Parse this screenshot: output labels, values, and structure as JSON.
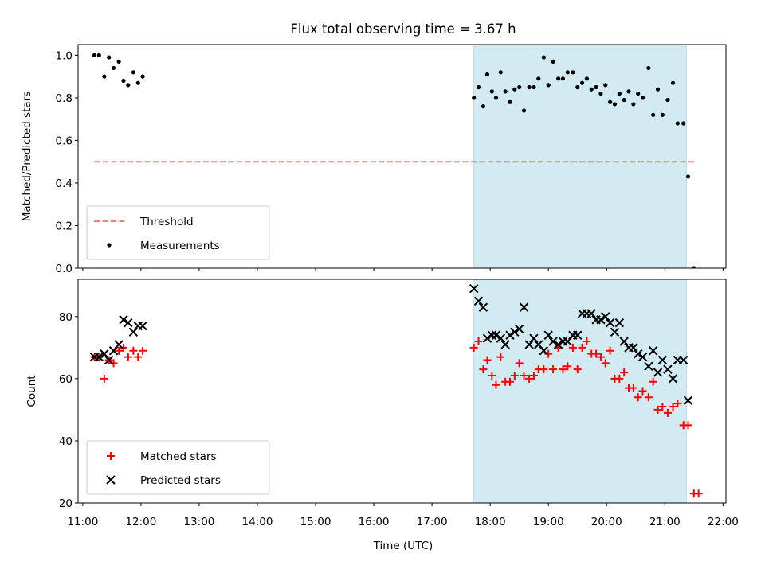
{
  "figure": {
    "title": "Flux total observing time = 3.67 h",
    "xlabel": "Time (UTC)",
    "xtick_labels": [
      "11:00",
      "12:00",
      "13:00",
      "14:00",
      "15:00",
      "16:00",
      "17:00",
      "18:00",
      "19:00",
      "20:00",
      "21:00",
      "22:00"
    ]
  },
  "chart_data": [
    {
      "type": "scatter",
      "ylabel": "Matched/Predicted stars",
      "ylim": [
        0,
        1.05
      ],
      "xlim": [
        10.92,
        22.05
      ],
      "yticks": [
        0.0,
        0.2,
        0.4,
        0.6,
        0.8,
        1.0
      ],
      "ytick_labels": [
        "0.0",
        "0.2",
        "0.4",
        "0.6",
        "0.8",
        "1.0"
      ],
      "shaded_interval": {
        "x": [
          17.72,
          21.37
        ],
        "color": "#add8e6"
      },
      "threshold": {
        "name": "Threshold",
        "y": 0.5,
        "x": [
          11.2,
          21.55
        ],
        "color": "#f08080",
        "style": "dashed"
      },
      "legend": {
        "position": "lower-left",
        "entries": [
          "Threshold",
          "Measurements"
        ]
      },
      "series": [
        {
          "name": "Measurements",
          "marker": "dot",
          "color": "#000000",
          "points": [
            [
              11.2,
              1.0
            ],
            [
              11.28,
              1.0
            ],
            [
              11.37,
              0.9
            ],
            [
              11.45,
              0.99
            ],
            [
              11.53,
              0.94
            ],
            [
              11.62,
              0.97
            ],
            [
              11.7,
              0.88
            ],
            [
              11.78,
              0.86
            ],
            [
              11.87,
              0.92
            ],
            [
              11.95,
              0.87
            ],
            [
              12.03,
              0.9
            ],
            [
              17.72,
              0.8
            ],
            [
              17.8,
              0.85
            ],
            [
              17.88,
              0.76
            ],
            [
              17.95,
              0.91
            ],
            [
              18.03,
              0.83
            ],
            [
              18.1,
              0.8
            ],
            [
              18.18,
              0.92
            ],
            [
              18.26,
              0.83
            ],
            [
              18.34,
              0.78
            ],
            [
              18.42,
              0.84
            ],
            [
              18.5,
              0.85
            ],
            [
              18.58,
              0.74
            ],
            [
              18.67,
              0.85
            ],
            [
              18.75,
              0.85
            ],
            [
              18.83,
              0.89
            ],
            [
              18.92,
              0.99
            ],
            [
              19.0,
              0.86
            ],
            [
              19.08,
              0.97
            ],
            [
              19.17,
              0.89
            ],
            [
              19.25,
              0.89
            ],
            [
              19.33,
              0.92
            ],
            [
              19.42,
              0.92
            ],
            [
              19.5,
              0.85
            ],
            [
              19.58,
              0.87
            ],
            [
              19.66,
              0.89
            ],
            [
              19.74,
              0.84
            ],
            [
              19.82,
              0.85
            ],
            [
              19.9,
              0.82
            ],
            [
              19.98,
              0.86
            ],
            [
              20.06,
              0.78
            ],
            [
              20.14,
              0.77
            ],
            [
              20.22,
              0.82
            ],
            [
              20.3,
              0.79
            ],
            [
              20.38,
              0.83
            ],
            [
              20.46,
              0.77
            ],
            [
              20.54,
              0.82
            ],
            [
              20.62,
              0.8
            ],
            [
              20.72,
              0.94
            ],
            [
              20.8,
              0.72
            ],
            [
              20.88,
              0.84
            ],
            [
              20.96,
              0.72
            ],
            [
              21.05,
              0.79
            ],
            [
              21.14,
              0.87
            ],
            [
              21.22,
              0.68
            ],
            [
              21.32,
              0.68
            ],
            [
              21.4,
              0.43
            ],
            [
              21.5,
              0.0
            ]
          ]
        }
      ]
    },
    {
      "type": "scatter",
      "ylabel": "Count",
      "ylim": [
        20,
        92
      ],
      "xlim": [
        10.92,
        22.05
      ],
      "yticks": [
        20,
        40,
        60,
        80
      ],
      "ytick_labels": [
        "20",
        "40",
        "60",
        "80"
      ],
      "shaded_interval": {
        "x": [
          17.72,
          21.37
        ],
        "color": "#add8e6"
      },
      "legend": {
        "position": "lower-left",
        "entries": [
          "Matched stars",
          "Predicted stars"
        ]
      },
      "series": [
        {
          "name": "Matched stars",
          "marker": "plus",
          "color": "#ff0000",
          "points": [
            [
              11.2,
              67
            ],
            [
              11.28,
              67
            ],
            [
              11.37,
              60
            ],
            [
              11.45,
              66
            ],
            [
              11.53,
              65
            ],
            [
              11.62,
              69
            ],
            [
              11.7,
              70
            ],
            [
              11.78,
              67
            ],
            [
              11.87,
              69
            ],
            [
              11.95,
              67
            ],
            [
              12.03,
              69
            ],
            [
              17.72,
              70
            ],
            [
              17.8,
              72
            ],
            [
              17.88,
              63
            ],
            [
              17.95,
              66
            ],
            [
              18.03,
              61
            ],
            [
              18.1,
              58
            ],
            [
              18.18,
              67
            ],
            [
              18.26,
              59
            ],
            [
              18.34,
              59
            ],
            [
              18.42,
              61
            ],
            [
              18.5,
              65
            ],
            [
              18.58,
              61
            ],
            [
              18.67,
              60
            ],
            [
              18.75,
              61
            ],
            [
              18.83,
              63
            ],
            [
              18.92,
              63
            ],
            [
              19.0,
              68
            ],
            [
              19.08,
              63
            ],
            [
              19.17,
              70
            ],
            [
              19.25,
              63
            ],
            [
              19.33,
              64
            ],
            [
              19.42,
              70
            ],
            [
              19.5,
              63
            ],
            [
              19.58,
              70
            ],
            [
              19.66,
              72
            ],
            [
              19.74,
              68
            ],
            [
              19.82,
              68
            ],
            [
              19.9,
              67
            ],
            [
              19.98,
              65
            ],
            [
              20.06,
              69
            ],
            [
              20.14,
              60
            ],
            [
              20.22,
              60
            ],
            [
              20.3,
              62
            ],
            [
              20.38,
              57
            ],
            [
              20.46,
              57
            ],
            [
              20.54,
              54
            ],
            [
              20.62,
              56
            ],
            [
              20.72,
              54
            ],
            [
              20.8,
              59
            ],
            [
              20.88,
              50
            ],
            [
              20.96,
              51
            ],
            [
              21.05,
              49
            ],
            [
              21.14,
              51
            ],
            [
              21.22,
              52
            ],
            [
              21.32,
              45
            ],
            [
              21.4,
              45
            ],
            [
              21.5,
              23
            ],
            [
              21.58,
              23
            ]
          ]
        },
        {
          "name": "Predicted stars",
          "marker": "x",
          "color": "#000000",
          "points": [
            [
              11.2,
              67
            ],
            [
              11.28,
              67
            ],
            [
              11.37,
              68
            ],
            [
              11.45,
              66
            ],
            [
              11.53,
              69
            ],
            [
              11.62,
              71
            ],
            [
              11.7,
              79
            ],
            [
              11.78,
              78
            ],
            [
              11.87,
              75
            ],
            [
              11.95,
              77
            ],
            [
              12.03,
              77
            ],
            [
              17.72,
              89
            ],
            [
              17.8,
              85
            ],
            [
              17.88,
              83
            ],
            [
              17.95,
              73
            ],
            [
              18.03,
              74
            ],
            [
              18.1,
              74
            ],
            [
              18.18,
              73
            ],
            [
              18.26,
              71
            ],
            [
              18.34,
              74
            ],
            [
              18.42,
              75
            ],
            [
              18.5,
              76
            ],
            [
              18.58,
              83
            ],
            [
              18.67,
              71
            ],
            [
              18.75,
              73
            ],
            [
              18.83,
              71
            ],
            [
              18.92,
              69
            ],
            [
              19.0,
              74
            ],
            [
              19.08,
              72
            ],
            [
              19.17,
              71
            ],
            [
              19.25,
              72
            ],
            [
              19.33,
              72
            ],
            [
              19.42,
              74
            ],
            [
              19.5,
              74
            ],
            [
              19.58,
              81
            ],
            [
              19.66,
              81
            ],
            [
              19.74,
              81
            ],
            [
              19.82,
              79
            ],
            [
              19.9,
              79
            ],
            [
              19.98,
              80
            ],
            [
              20.06,
              78
            ],
            [
              20.14,
              75
            ],
            [
              20.22,
              78
            ],
            [
              20.3,
              72
            ],
            [
              20.38,
              70
            ],
            [
              20.46,
              70
            ],
            [
              20.54,
              68
            ],
            [
              20.62,
              67
            ],
            [
              20.72,
              64
            ],
            [
              20.8,
              69
            ],
            [
              20.88,
              62
            ],
            [
              20.96,
              66
            ],
            [
              21.05,
              63
            ],
            [
              21.14,
              60
            ],
            [
              21.22,
              66
            ],
            [
              21.32,
              66
            ],
            [
              21.4,
              53
            ]
          ]
        }
      ]
    }
  ]
}
